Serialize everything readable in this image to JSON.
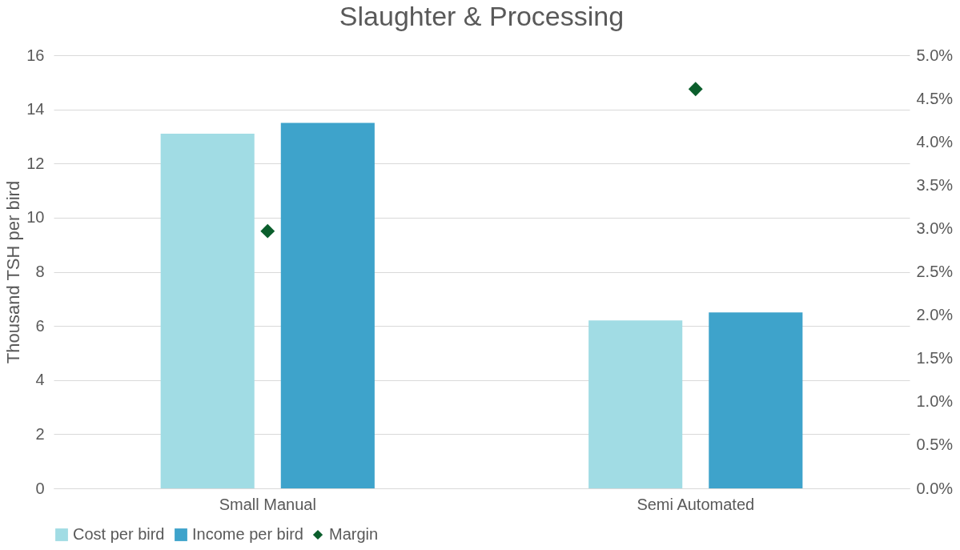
{
  "chart_data": {
    "type": "bar",
    "title": "Slaughter & Processing",
    "ylabel": "Thousand TSH per bird",
    "categories": [
      "Small Manual",
      "Semi Automated"
    ],
    "series": [
      {
        "name": "Cost per bird",
        "color": "#a1dce4",
        "values": [
          13.1,
          6.2
        ]
      },
      {
        "name": "Income per bird",
        "color": "#3ea3cb",
        "values": [
          13.5,
          6.5
        ]
      },
      {
        "name": "Margin",
        "type": "scatter",
        "axis": "y2",
        "marker": "diamond",
        "color": "#0b5e2c",
        "x": [
          "Small Manual",
          "Semi Automated"
        ],
        "values": [
          2.97,
          4.61
        ]
      }
    ],
    "ylim": [
      0,
      16
    ],
    "yticks": [
      0,
      2,
      4,
      6,
      8,
      10,
      12,
      14,
      16
    ],
    "y2lim": [
      0,
      5
    ],
    "y2ticks": [
      {
        "value": 0,
        "label": "0.0%"
      },
      {
        "value": 0.5,
        "label": "0.5%"
      },
      {
        "value": 1,
        "label": "1.0%"
      },
      {
        "value": 1.5,
        "label": "1.5%"
      },
      {
        "value": 2,
        "label": "2.0%"
      },
      {
        "value": 2.5,
        "label": "2.5%"
      },
      {
        "value": 3,
        "label": "3.0%"
      },
      {
        "value": 3.5,
        "label": "3.5%"
      },
      {
        "value": 4,
        "label": "4.0%"
      },
      {
        "value": 4.5,
        "label": "4.5%"
      },
      {
        "value": 5,
        "label": "5.0%"
      }
    ],
    "grid": "y",
    "legend": "bottom"
  }
}
